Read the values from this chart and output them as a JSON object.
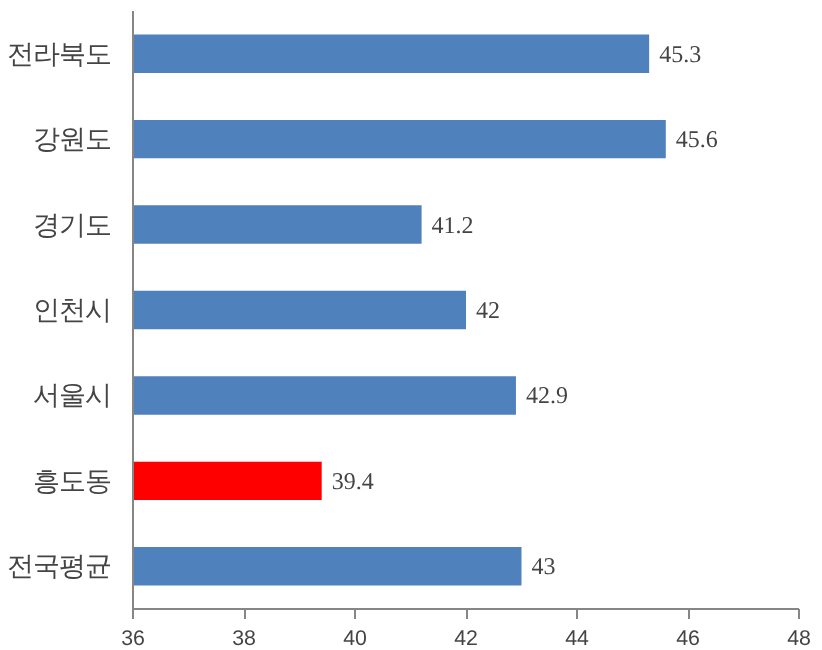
{
  "chart_data": {
    "type": "bar",
    "orientation": "horizontal",
    "categories": [
      "전라북도",
      "강원도",
      "경기도",
      "인천시",
      "서울시",
      "흥도동",
      "전국평균"
    ],
    "values": [
      45.3,
      45.6,
      41.2,
      42,
      42.9,
      39.4,
      43
    ],
    "colors": [
      "#4f81bd",
      "#4f81bd",
      "#4f81bd",
      "#4f81bd",
      "#4f81bd",
      "#ff0000",
      "#4f81bd"
    ],
    "xlim": [
      36,
      48
    ],
    "xticks": [
      36,
      38,
      40,
      42,
      44,
      46,
      48
    ],
    "data_labels": true,
    "grid": false
  }
}
